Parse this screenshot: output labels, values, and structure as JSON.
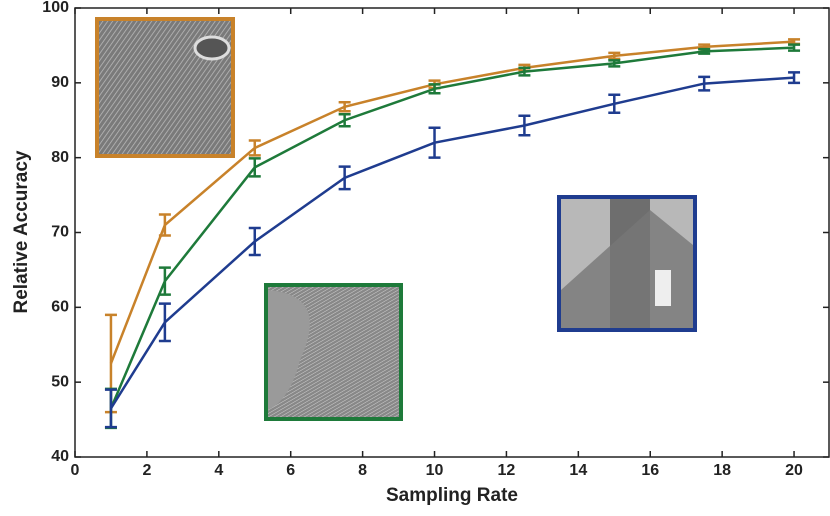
{
  "chart_data": {
    "type": "line",
    "x_label": "Sampling Rate",
    "y_label": "Relative Accuracy",
    "x": [
      1,
      2.5,
      5,
      7.5,
      10,
      12.5,
      15,
      17.5,
      20
    ],
    "xlim": [
      0,
      21
    ],
    "xticks": [
      0,
      2,
      4,
      6,
      8,
      10,
      12,
      14,
      16,
      18,
      20
    ],
    "ylim": [
      40,
      100
    ],
    "yticks": [
      40,
      50,
      60,
      70,
      80,
      90,
      100
    ],
    "grid": false,
    "series": [
      {
        "color": "#c8822a",
        "values": [
          52.5,
          71,
          81.3,
          86.8,
          89.8,
          92,
          93.6,
          94.8,
          95.5
        ],
        "errors": [
          6.5,
          1.4,
          1,
          0.6,
          0.5,
          0.4,
          0.4,
          0.3,
          0.3
        ]
      },
      {
        "color": "#1e7a3a",
        "values": [
          46.5,
          63.5,
          78.7,
          85,
          89.2,
          91.5,
          92.6,
          94.2,
          94.7
        ],
        "errors": [
          2.6,
          1.8,
          1.2,
          0.8,
          0.6,
          0.5,
          0.4,
          0.3,
          0.4
        ]
      },
      {
        "color": "#1f3c8f",
        "values": [
          46.5,
          58,
          68.8,
          77.3,
          82,
          84.3,
          87.2,
          89.9,
          90.7
        ],
        "errors": [
          2.5,
          2.5,
          1.8,
          1.5,
          2,
          1.3,
          1.2,
          0.9,
          0.7
        ]
      }
    ]
  }
}
